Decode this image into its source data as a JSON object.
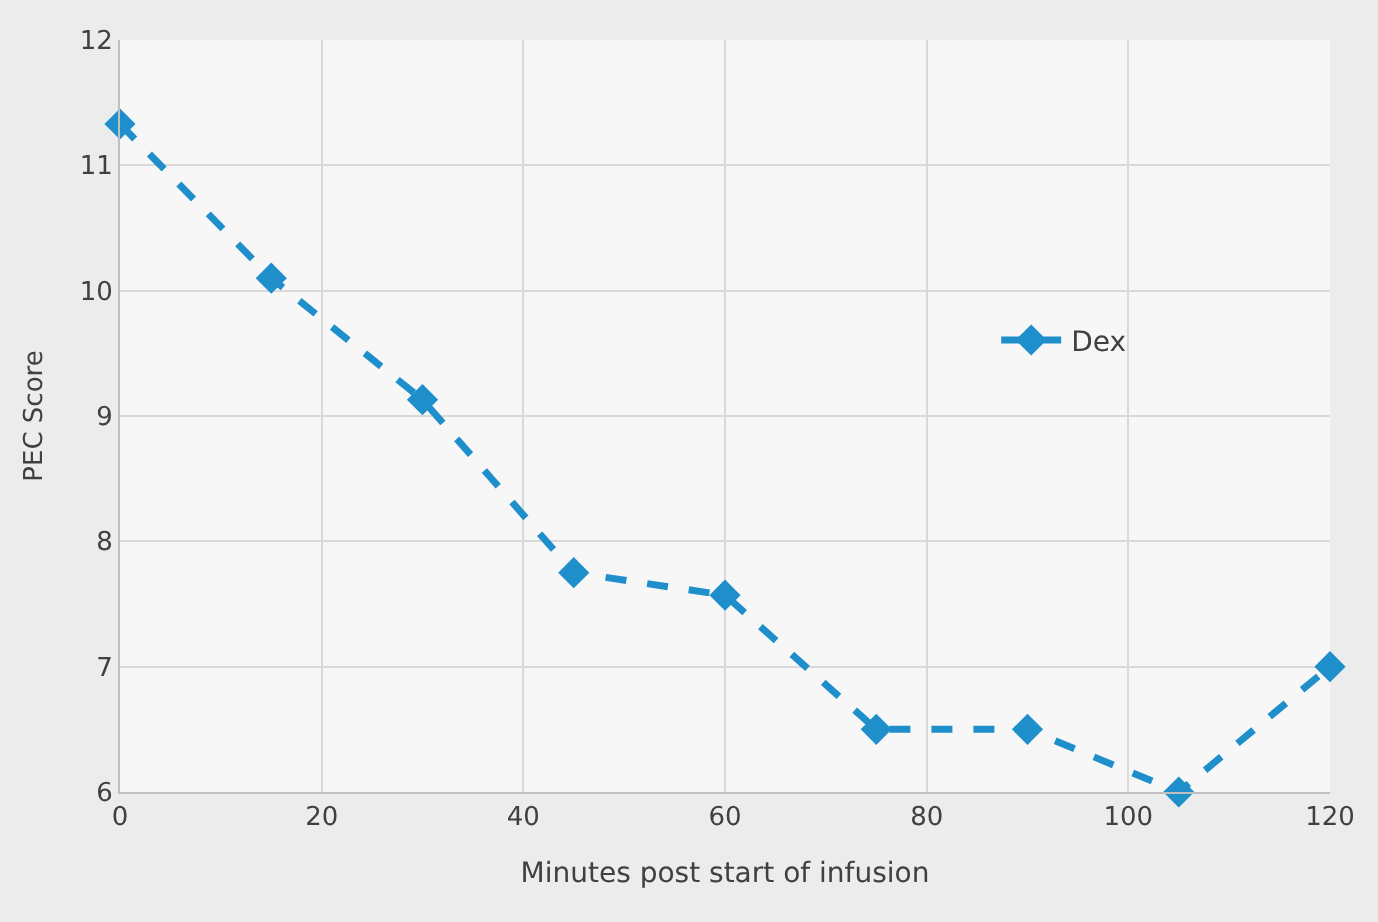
{
  "chart_data": {
    "type": "line",
    "xlabel": "Minutes post start of infusion",
    "ylabel": "PEC Score",
    "x": [
      0,
      15,
      30,
      45,
      60,
      75,
      90,
      105,
      120
    ],
    "series": [
      {
        "name": "Dex",
        "color": "#1f8fcc",
        "values": [
          11.33,
          10.1,
          9.13,
          7.75,
          7.57,
          6.5,
          6.5,
          6.0,
          7.0
        ]
      }
    ],
    "xlim": [
      0,
      120
    ],
    "xticks": [
      0,
      20,
      40,
      60,
      80,
      100,
      120
    ],
    "ylim": [
      6,
      12
    ],
    "yticks": [
      6,
      7,
      8,
      9,
      10,
      11,
      12
    ],
    "grid": true,
    "legend": "right",
    "marker": "diamond",
    "line_style": "dashed"
  }
}
